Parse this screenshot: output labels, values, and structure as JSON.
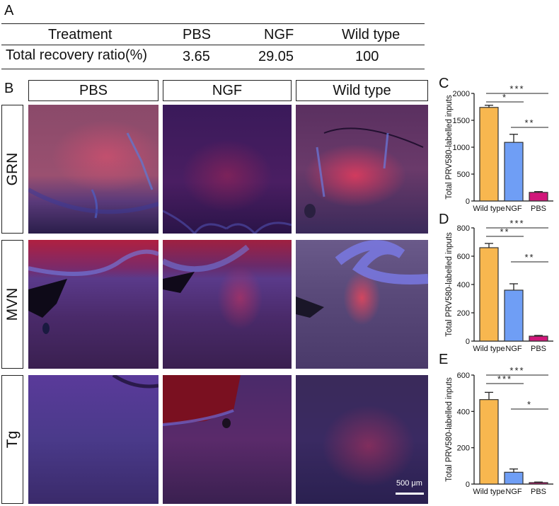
{
  "panel_a": {
    "letter": "A",
    "header": [
      "Treatment",
      "PBS",
      "NGF",
      "Wild type"
    ],
    "row": [
      "Total recovery ratio(%)",
      "3.65",
      "29.05",
      "100"
    ]
  },
  "panel_b": {
    "letter": "B",
    "columns": [
      "PBS",
      "NGF",
      "Wild type"
    ],
    "rows": [
      "GRN",
      "MVN",
      "Tg"
    ],
    "scale_bar": "500 μm"
  },
  "chart_data": [
    {
      "panel": "C",
      "type": "bar",
      "categories": [
        "Wild type",
        "NGF",
        "PBS"
      ],
      "values": [
        1740,
        1090,
        160
      ],
      "errors": [
        40,
        150,
        15
      ],
      "ylabel": "Total PRV580-labelled inputs",
      "ylim": [
        0,
        2000
      ],
      "yticks": [
        "0",
        "500",
        "1000",
        "1500",
        "2000"
      ],
      "colors": [
        "#f8b74f",
        "#6f9ef5",
        "#d1167a"
      ],
      "significance": [
        {
          "from": 0,
          "to": 1,
          "label": "*"
        },
        {
          "from": 0,
          "to": 2,
          "label": "***"
        },
        {
          "from": 1,
          "to": 2,
          "label": "**"
        }
      ]
    },
    {
      "panel": "D",
      "type": "bar",
      "categories": [
        "Wild type",
        "NGF",
        "PBS"
      ],
      "values": [
        660,
        360,
        35
      ],
      "errors": [
        30,
        45,
        5
      ],
      "ylabel": "Total PRV580-labelled inputs",
      "ylim": [
        0,
        800
      ],
      "yticks": [
        "0",
        "200",
        "400",
        "600",
        "800"
      ],
      "colors": [
        "#f8b74f",
        "#6f9ef5",
        "#d1167a"
      ],
      "significance": [
        {
          "from": 0,
          "to": 1,
          "label": "**"
        },
        {
          "from": 0,
          "to": 2,
          "label": "***"
        },
        {
          "from": 1,
          "to": 2,
          "label": "**"
        }
      ]
    },
    {
      "panel": "E",
      "type": "bar",
      "categories": [
        "Wild type",
        "NGF",
        "PBS"
      ],
      "values": [
        465,
        65,
        8
      ],
      "errors": [
        40,
        18,
        3
      ],
      "ylabel": "Total PRV580-labelled inputs",
      "ylim": [
        0,
        600
      ],
      "yticks": [
        "0",
        "200",
        "400",
        "600"
      ],
      "colors": [
        "#f8b74f",
        "#6f9ef5",
        "#d1167a"
      ],
      "significance": [
        {
          "from": 0,
          "to": 1,
          "label": "***"
        },
        {
          "from": 0,
          "to": 2,
          "label": "***"
        },
        {
          "from": 1,
          "to": 2,
          "label": "*"
        }
      ]
    }
  ]
}
